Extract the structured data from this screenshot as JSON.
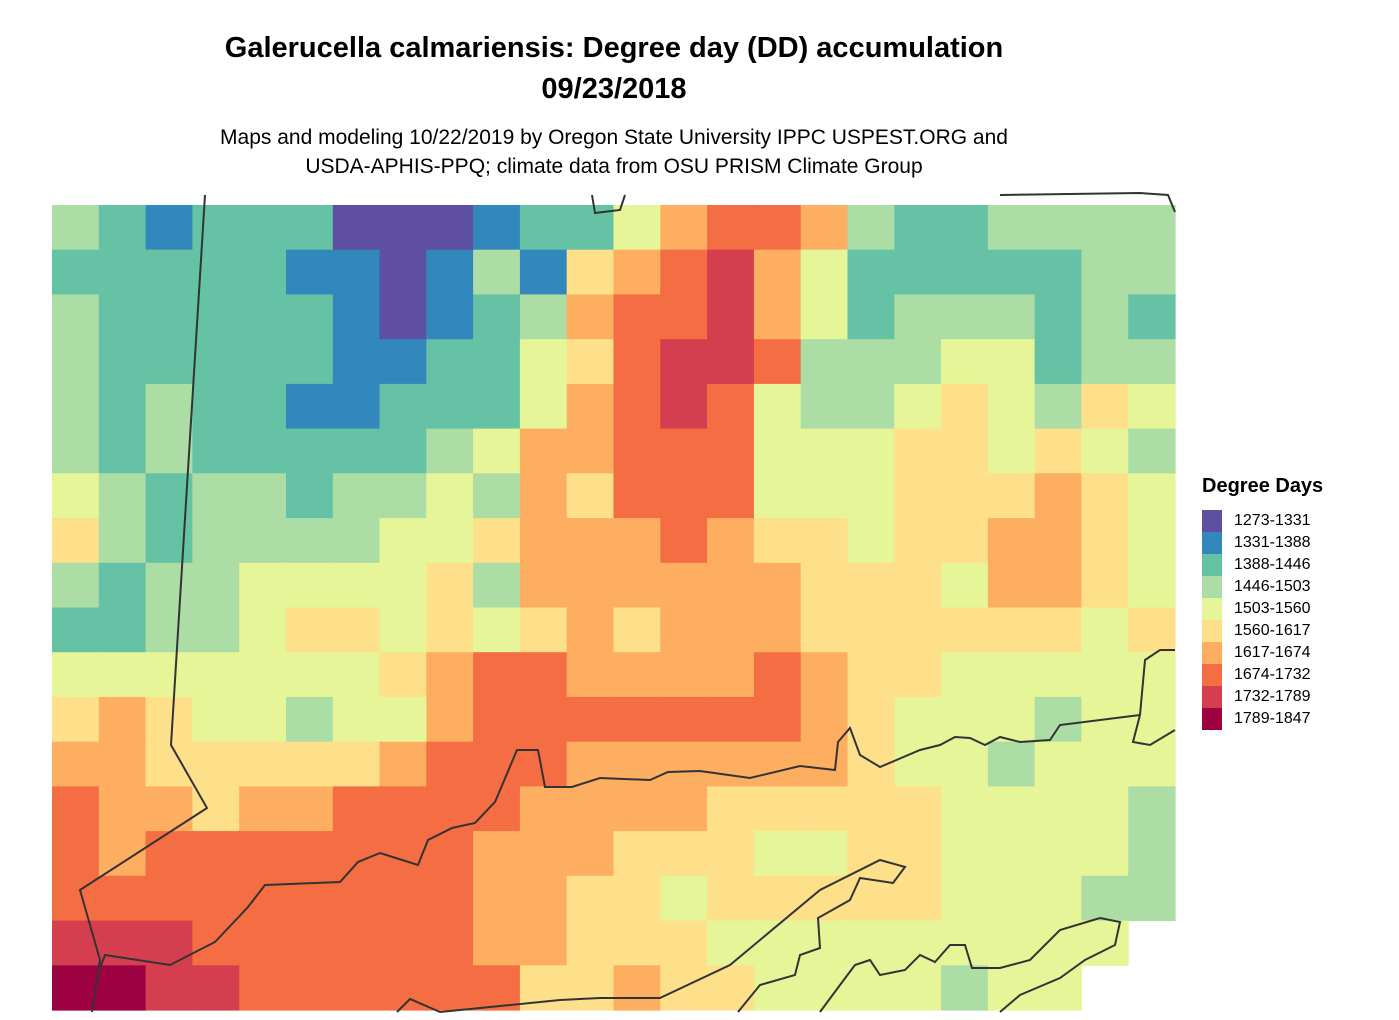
{
  "title_line1": "Galerucella calmariensis: Degree day (DD) accumulation",
  "title_line2": "09/23/2018",
  "subtitle_line1": "Maps and modeling 10/22/2019 by Oregon State University IPPC USPEST.ORG and",
  "subtitle_line2": "USDA-APHIS-PPQ; climate data from OSU PRISM Climate Group",
  "legend": {
    "title": "Degree Days",
    "items": [
      {
        "label": "1273-1331",
        "color": "#5E4FA2"
      },
      {
        "label": "1331-1388",
        "color": "#3288BD"
      },
      {
        "label": "1388-1446",
        "color": "#66C2A5"
      },
      {
        "label": "1446-1503",
        "color": "#ABDDA4"
      },
      {
        "label": "1503-1560",
        "color": "#E6F598"
      },
      {
        "label": "1560-1617",
        "color": "#FEE08B"
      },
      {
        "label": "1617-1674",
        "color": "#FDAE61"
      },
      {
        "label": "1674-1732",
        "color": "#F46D43"
      },
      {
        "label": "1732-1789",
        "color": "#D53E4F"
      },
      {
        "label": "1789-1847",
        "color": "#9E0142"
      }
    ]
  },
  "raster_classes": [
    "321222000122467763223333",
    "222221101315678642222233",
    "322222101236778642333232",
    "322222112245788733344233",
    "323221122246787433454354",
    "323222223466777444554543",
    "432332334365777444555654",
    "532333344566676554556654",
    "323344445366666655546654",
    "223345545456566655555545",
    "444444456776666765544444",
    "565443446777777765444344",
    "665555567776666665443444",
    "766566777766665555544443",
    "767777777666555445544443",
    "777777777665545555544433",
    "88877777766555444444444.",
    "9988777777556554444344.."
  ]
}
